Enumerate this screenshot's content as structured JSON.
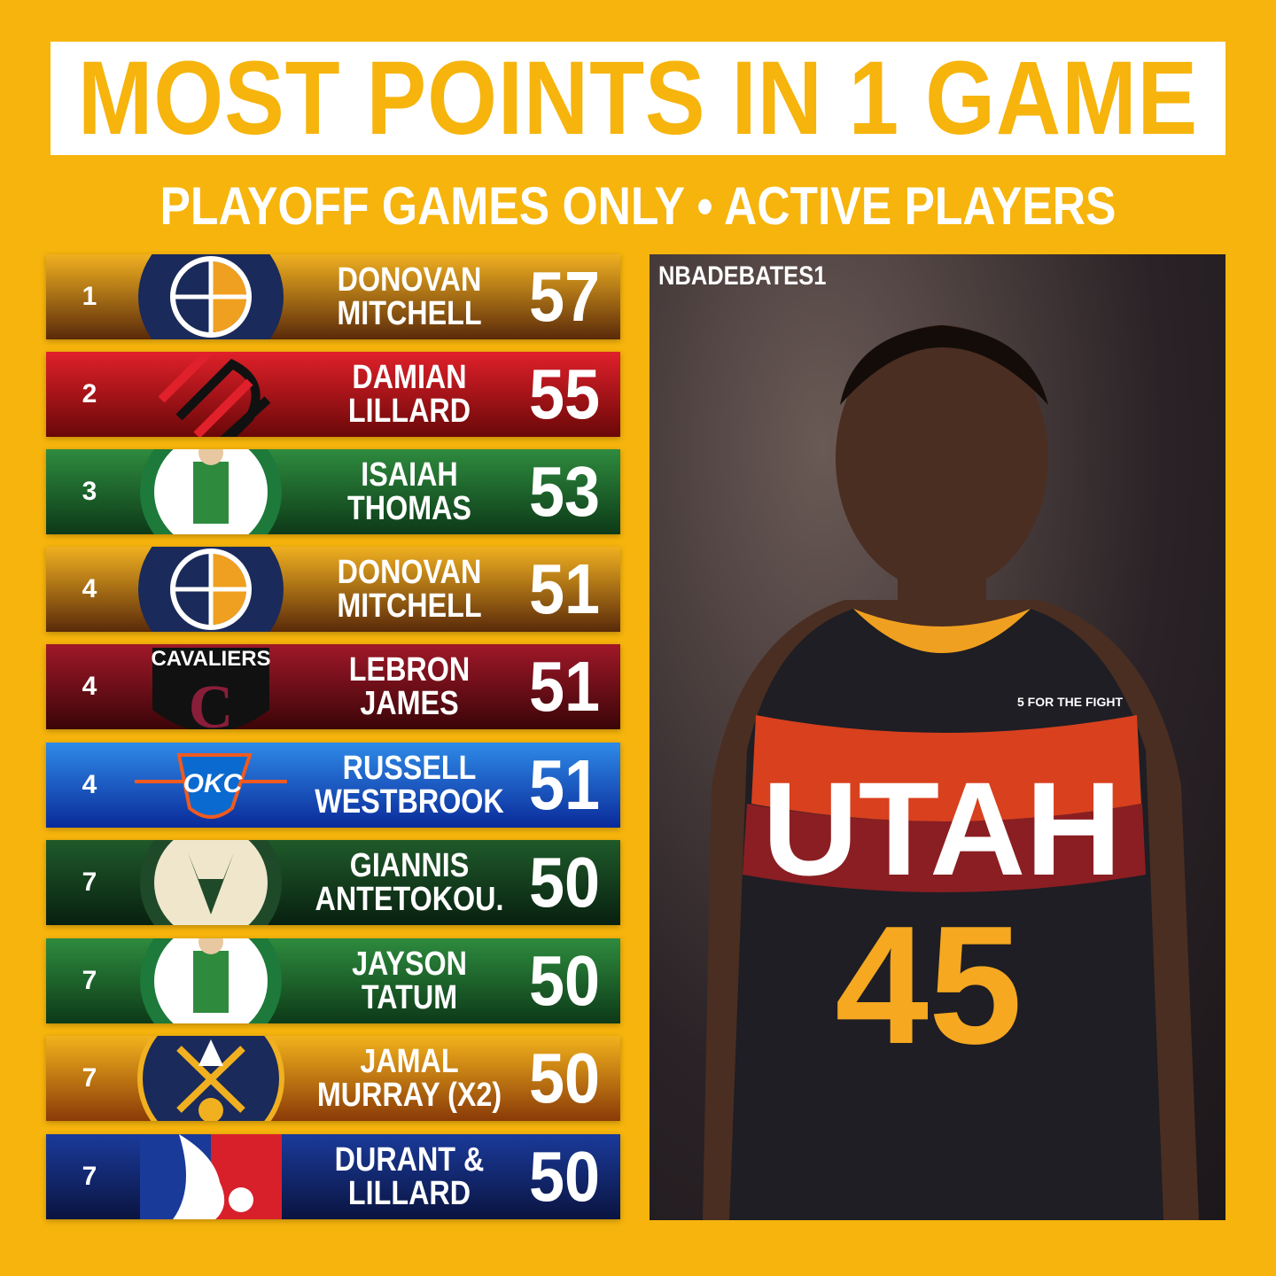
{
  "header": {
    "title": "MOST POINTS IN 1 GAME",
    "subtitle": "PLAYOFF GAMES ONLY • ACTIVE PLAYERS"
  },
  "rows": [
    {
      "rank": "1",
      "name1": "DONOVAN",
      "name2": "MITCHELL",
      "points": "57",
      "team": "jazz",
      "colors": [
        "#F0B020",
        "#5a2a0a"
      ]
    },
    {
      "rank": "2",
      "name1": "DAMIAN",
      "name2": "LILLARD",
      "points": "55",
      "team": "blazers",
      "colors": [
        "#E0202A",
        "#6a0808"
      ]
    },
    {
      "rank": "3",
      "name1": "ISAIAH",
      "name2": "THOMAS",
      "points": "53",
      "team": "celtics",
      "colors": [
        "#2E8B3E",
        "#0d3a18"
      ]
    },
    {
      "rank": "4",
      "name1": "DONOVAN",
      "name2": "MITCHELL",
      "points": "51",
      "team": "jazz",
      "colors": [
        "#F0B020",
        "#5a2a0a"
      ]
    },
    {
      "rank": "4",
      "name1": "LEBRON",
      "name2": "JAMES",
      "points": "51",
      "team": "cavaliers",
      "colors": [
        "#A01828",
        "#3a0508"
      ]
    },
    {
      "rank": "4",
      "name1": "RUSSELL",
      "name2": "WESTBROOK",
      "points": "51",
      "team": "thunder",
      "colors": [
        "#2F8BE8",
        "#0a2a9a"
      ]
    },
    {
      "rank": "7",
      "name1": "GIANNIS",
      "name2": "ANTETOKOU.",
      "points": "50",
      "team": "bucks",
      "colors": [
        "#1f5a2a",
        "#082010"
      ]
    },
    {
      "rank": "7",
      "name1": "JAYSON",
      "name2": "TATUM",
      "points": "50",
      "team": "celtics",
      "colors": [
        "#2E8B3E",
        "#0d3a18"
      ]
    },
    {
      "rank": "7",
      "name1": "JAMAL",
      "name2": "MURRAY (X2)",
      "points": "50",
      "team": "nuggets",
      "colors": [
        "#F2B21C",
        "#8a3a08"
      ]
    },
    {
      "rank": "7",
      "name1": "DURANT &",
      "name2": "LILLARD",
      "points": "50",
      "team": "nba",
      "colors": [
        "#1a3a9a",
        "#0a1440"
      ]
    }
  ],
  "photo": {
    "watermark": "NBADEBATES1",
    "jersey_text": "UTAH",
    "jersey_number": "45",
    "patch": "5 FOR THE FIGHT"
  }
}
